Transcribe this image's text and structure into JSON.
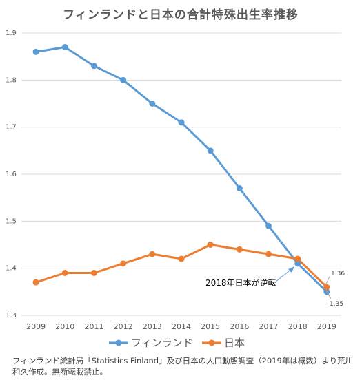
{
  "chart_data": {
    "type": "line",
    "title": "フィンランドと日本の合計特殊出生率推移",
    "x": [
      "2009",
      "2010",
      "2011",
      "2012",
      "2013",
      "2014",
      "2015",
      "2016",
      "2017",
      "2018",
      "2019"
    ],
    "series": [
      {
        "name": "フィンランド",
        "color": "#5b9bd5",
        "values": [
          1.86,
          1.87,
          1.83,
          1.8,
          1.75,
          1.71,
          1.65,
          1.57,
          1.49,
          1.41,
          1.35
        ]
      },
      {
        "name": "日本",
        "color": "#ed7d31",
        "values": [
          1.37,
          1.39,
          1.39,
          1.41,
          1.43,
          1.42,
          1.45,
          1.44,
          1.43,
          1.42,
          1.36
        ]
      }
    ],
    "ylim": [
      1.3,
      1.9
    ],
    "yticks": [
      "1.3",
      "1.4",
      "1.5",
      "1.6",
      "1.7",
      "1.8",
      "1.9"
    ],
    "grid": true,
    "legend_position": "bottom",
    "annotation": {
      "text": "2018年日本が逆転",
      "x": "2018"
    },
    "data_labels": {
      "finland_2019": "1.35",
      "japan_2019": "1.36"
    }
  },
  "source_note": "フィンランド統計局「Statistics Finland」及び日本の人口動態調査（2019年は概数）より荒川和久作成。無断転載禁止。"
}
